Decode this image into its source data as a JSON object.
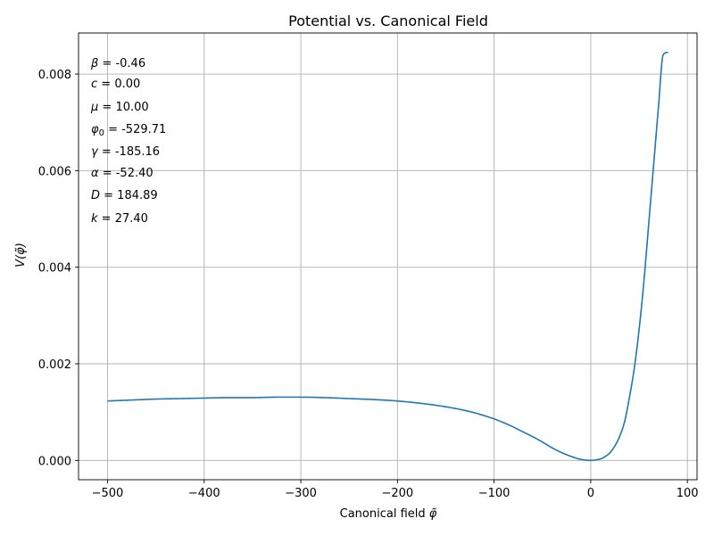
{
  "chart_data": {
    "type": "line",
    "title": "Potential vs. Canonical Field",
    "xlabel": "Canonical field φ̃",
    "ylabel": "V(φ̃)",
    "xlim": [
      -530,
      110
    ],
    "ylim": [
      -0.0004,
      0.00885
    ],
    "xticks": [
      -500,
      -400,
      -300,
      -200,
      -100,
      0,
      100
    ],
    "xtick_labels": [
      "−500",
      "−400",
      "−300",
      "−200",
      "−100",
      "0",
      "100"
    ],
    "yticks": [
      0,
      0.002,
      0.004,
      0.006,
      0.008
    ],
    "ytick_labels": [
      "0.000",
      "0.002",
      "0.004",
      "0.006",
      "0.008"
    ],
    "grid": true,
    "line_color": "#1f77b4",
    "annotations": [
      "β = -0.46",
      "c = 0.00",
      "μ = 10.00",
      "φ0 = -529.71",
      "γ = -185.16",
      "α = -52.40",
      "D = 184.89",
      "k = 27.40"
    ],
    "series": [
      {
        "x": [
          -500,
          -475,
          -450,
          -425,
          -400,
          -375,
          -350,
          -325,
          -300,
          -275,
          -250,
          -225,
          -200,
          -175,
          -150,
          -125,
          -100,
          -90,
          -80,
          -70,
          -60,
          -50,
          -40,
          -30,
          -20,
          -10,
          0,
          5,
          10,
          15,
          20,
          25,
          30,
          35,
          40,
          45,
          50,
          55,
          60,
          65,
          70,
          75,
          80
        ],
        "y": [
          0.00123,
          0.00125,
          0.00127,
          0.00128,
          0.00129,
          0.0013,
          0.0013,
          0.00131,
          0.00131,
          0.0013,
          0.00128,
          0.00126,
          0.00123,
          0.00118,
          0.00111,
          0.00101,
          0.00086,
          0.00078,
          0.00069,
          0.00059,
          0.00049,
          0.00038,
          0.00026,
          0.00016,
          8e-05,
          2e-05,
          0.0,
          1e-05,
          3e-05,
          8e-05,
          0.00016,
          0.0003,
          0.0005,
          0.0008,
          0.0013,
          0.0019,
          0.0027,
          0.0037,
          0.0049,
          0.0061,
          0.0073,
          0.0084,
          0.00845
        ]
      }
    ]
  }
}
